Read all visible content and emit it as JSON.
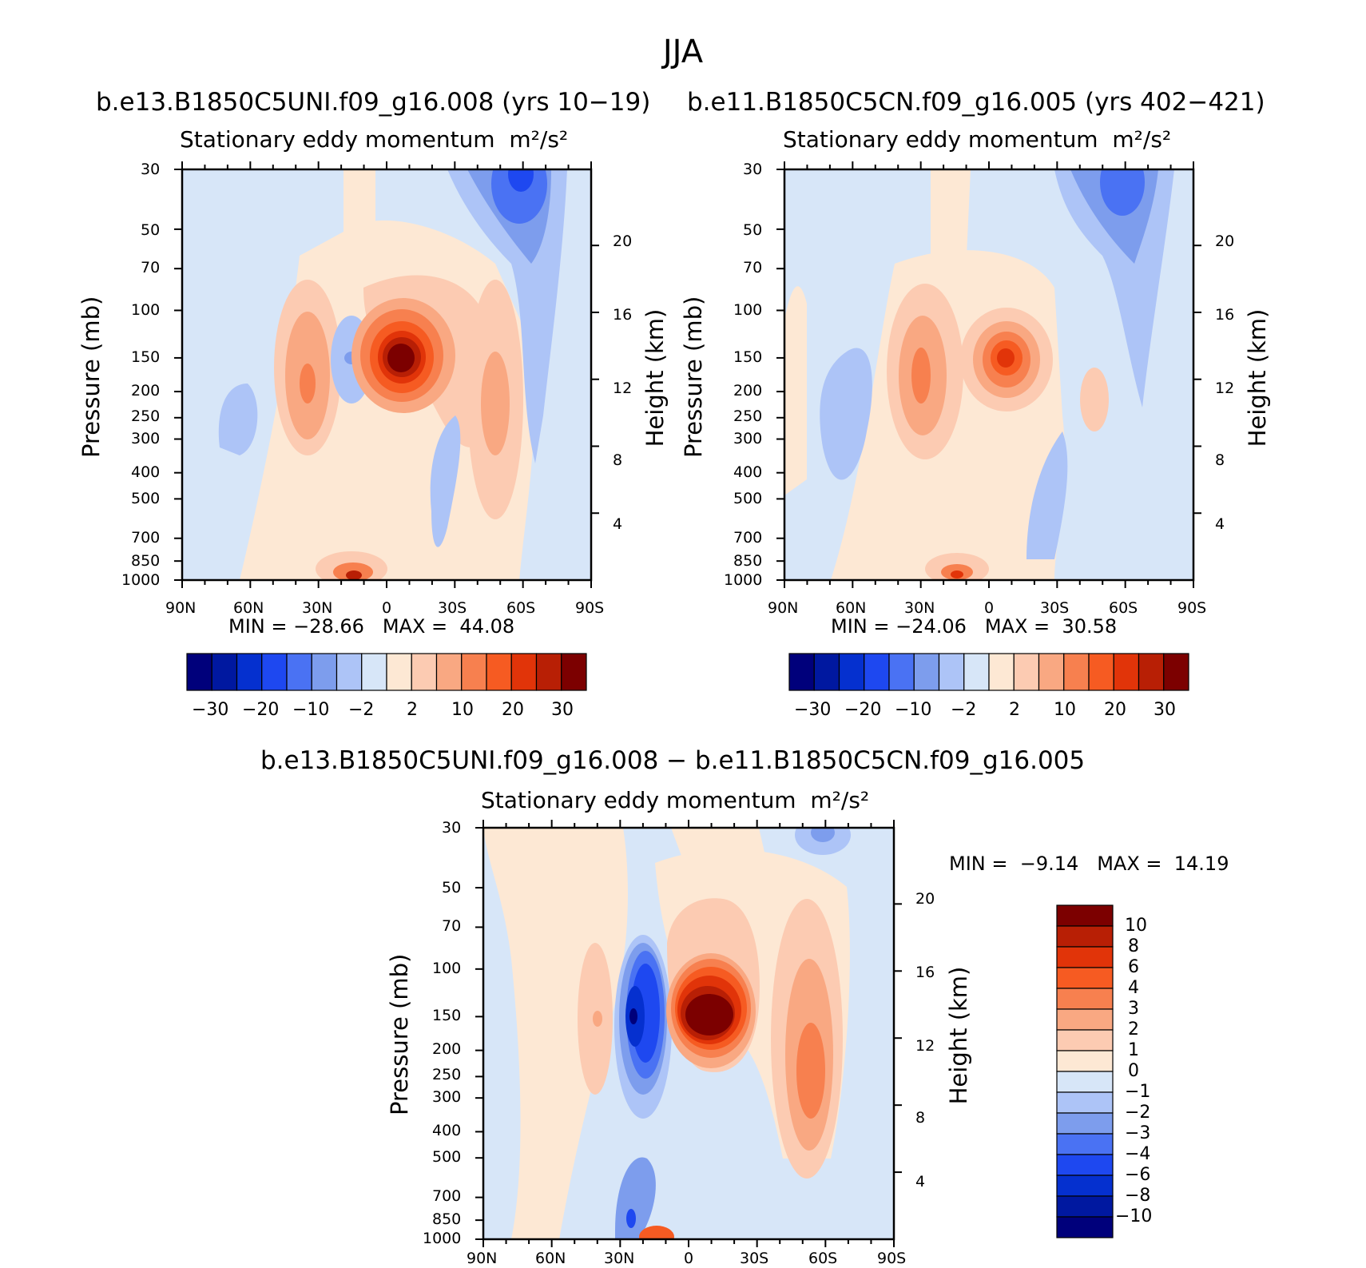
{
  "figure": {
    "title": "JJA",
    "colors": {
      "negative": [
        "#00007b",
        "#0018a0",
        "#0530cf",
        "#1e48f0",
        "#4a72f3",
        "#7d9ded",
        "#adc4f7",
        "#d7e6f8"
      ],
      "positive": [
        "#fde8d4",
        "#fccbb2",
        "#f9a882",
        "#f7804f",
        "#f65b22",
        "#e13409",
        "#b81f05",
        "#7c0000"
      ]
    }
  },
  "panels": [
    {
      "id": "case",
      "run_title": "b.e13.B1850C5UNI.f09_g16.008 (yrs 10−19)",
      "plot_title": "Stationary eddy momentum",
      "units": "m²/s²",
      "y_left_label": "Pressure (mb)",
      "y_right_label": "Height (km)",
      "y_ticks": [
        "30",
        "50",
        "70",
        "100",
        "150",
        "200",
        "250",
        "300",
        "400",
        "500",
        "700",
        "850",
        "1000"
      ],
      "y_right_ticks": [
        "20",
        "16",
        "12",
        "8",
        "4"
      ],
      "x_ticks": [
        "90N",
        "60N",
        "30N",
        "0",
        "30S",
        "60S",
        "90S"
      ],
      "stats": {
        "min_label": "MIN =",
        "min": "−28.66",
        "max_label": "MAX =",
        "max": "44.08"
      },
      "colorbar_labels": [
        "−30",
        "−20",
        "−10",
        "−2",
        "2",
        "10",
        "20",
        "30"
      ]
    },
    {
      "id": "control",
      "run_title": "b.e11.B1850C5CN.f09_g16.005 (yrs 402−421)",
      "plot_title": "Stationary eddy momentum",
      "units": "m²/s²",
      "y_left_label": "Pressure (mb)",
      "y_right_label": "Height (km)",
      "y_ticks": [
        "30",
        "50",
        "70",
        "100",
        "150",
        "200",
        "250",
        "300",
        "400",
        "500",
        "700",
        "850",
        "1000"
      ],
      "y_right_ticks": [
        "20",
        "16",
        "12",
        "8",
        "4"
      ],
      "x_ticks": [
        "90N",
        "60N",
        "30N",
        "0",
        "30S",
        "60S",
        "90S"
      ],
      "stats": {
        "min_label": "MIN =",
        "min": "−24.06",
        "max_label": "MAX =",
        "max": "30.58"
      },
      "colorbar_labels": [
        "−30",
        "−20",
        "−10",
        "−2",
        "2",
        "10",
        "20",
        "30"
      ]
    },
    {
      "id": "diff",
      "run_title": "b.e13.B1850C5UNI.f09_g16.008 − b.e11.B1850C5CN.f09_g16.005",
      "plot_title": "Stationary eddy momentum",
      "units": "m²/s²",
      "y_left_label": "Pressure (mb)",
      "y_right_label": "Height (km)",
      "y_ticks": [
        "30",
        "50",
        "70",
        "100",
        "150",
        "200",
        "250",
        "300",
        "400",
        "500",
        "700",
        "850",
        "1000"
      ],
      "y_right_ticks": [
        "20",
        "16",
        "12",
        "8",
        "4"
      ],
      "x_ticks": [
        "90N",
        "60N",
        "30N",
        "0",
        "30S",
        "60S",
        "90S"
      ],
      "stats": {
        "min_label": "MIN =",
        "min": "−9.14",
        "max_label": "MAX =",
        "max": "14.19"
      },
      "colorbar_labels": [
        "10",
        "8",
        "6",
        "4",
        "3",
        "2",
        "1",
        "0",
        "−1",
        "−2",
        "−3",
        "−4",
        "−6",
        "−8",
        "−10"
      ]
    }
  ],
  "chart_data": [
    {
      "type": "heatmap",
      "panel": "case",
      "title": "Stationary eddy momentum",
      "units": "m²/s²",
      "xlabel": "",
      "ylabel": "Pressure (mb)",
      "y2label": "Height (km)",
      "xlim": [
        90,
        -90
      ],
      "ylim": [
        1000,
        30
      ],
      "y2lim": [
        0,
        24
      ],
      "levels": [
        -30,
        -25,
        -20,
        -15,
        -10,
        -5,
        -2,
        0,
        2,
        5,
        10,
        15,
        20,
        25,
        30
      ],
      "min": -28.66,
      "max": 44.08,
      "features": [
        {
          "lat": 0,
          "p": 150,
          "value": 44.08
        },
        {
          "lat": 32,
          "p": 200,
          "value": 15
        },
        {
          "lat": 15,
          "p": 150,
          "value": -6
        },
        {
          "lat": -52,
          "p": 250,
          "value": 10
        },
        {
          "lat": 13,
          "p": 1000,
          "value": 20
        },
        {
          "lat": -60,
          "p": 30,
          "value": -28.66
        },
        {
          "lat": -55,
          "p": 150,
          "value": -4
        },
        {
          "lat": -20,
          "p": 500,
          "value": -4
        },
        {
          "lat": 55,
          "p": 300,
          "value": -3
        }
      ]
    },
    {
      "type": "heatmap",
      "panel": "control",
      "title": "Stationary eddy momentum",
      "units": "m²/s²",
      "xlabel": "",
      "ylabel": "Pressure (mb)",
      "y2label": "Height (km)",
      "xlim": [
        90,
        -90
      ],
      "ylim": [
        1000,
        30
      ],
      "y2lim": [
        0,
        24
      ],
      "levels": [
        -30,
        -25,
        -20,
        -15,
        -10,
        -5,
        -2,
        0,
        2,
        5,
        10,
        15,
        20,
        25,
        30
      ],
      "min": -24.06,
      "max": 30.58,
      "features": [
        {
          "lat": -5,
          "p": 150,
          "value": 30.58
        },
        {
          "lat": 30,
          "p": 175,
          "value": 14
        },
        {
          "lat": 13,
          "p": 1000,
          "value": 16
        },
        {
          "lat": -62,
          "p": 35,
          "value": -24.06
        },
        {
          "lat": 68,
          "p": 250,
          "value": -4
        },
        {
          "lat": -30,
          "p": 500,
          "value": -4
        },
        {
          "lat": -45,
          "p": 200,
          "value": 3
        }
      ]
    },
    {
      "type": "heatmap",
      "panel": "diff",
      "title": "Stationary eddy momentum",
      "units": "m²/s²",
      "xlabel": "",
      "ylabel": "Pressure (mb)",
      "y2label": "Height (km)",
      "xlim": [
        90,
        -90
      ],
      "ylim": [
        1000,
        30
      ],
      "y2lim": [
        0,
        24
      ],
      "levels": [
        -10,
        -8,
        -6,
        -4,
        -3,
        -2,
        -1,
        0,
        1,
        2,
        3,
        4,
        6,
        8,
        10
      ],
      "min": -9.14,
      "max": 14.19,
      "features": [
        {
          "lat": 0,
          "p": 150,
          "value": 14.19
        },
        {
          "lat": 25,
          "p": 150,
          "value": -9.14
        },
        {
          "lat": -52,
          "p": 250,
          "value": 7
        },
        {
          "lat": 40,
          "p": 150,
          "value": 3
        },
        {
          "lat": 15,
          "p": 1000,
          "value": 8
        },
        {
          "lat": -60,
          "p": 30,
          "value": -3
        },
        {
          "lat": 25,
          "p": 850,
          "value": -5
        }
      ]
    }
  ]
}
